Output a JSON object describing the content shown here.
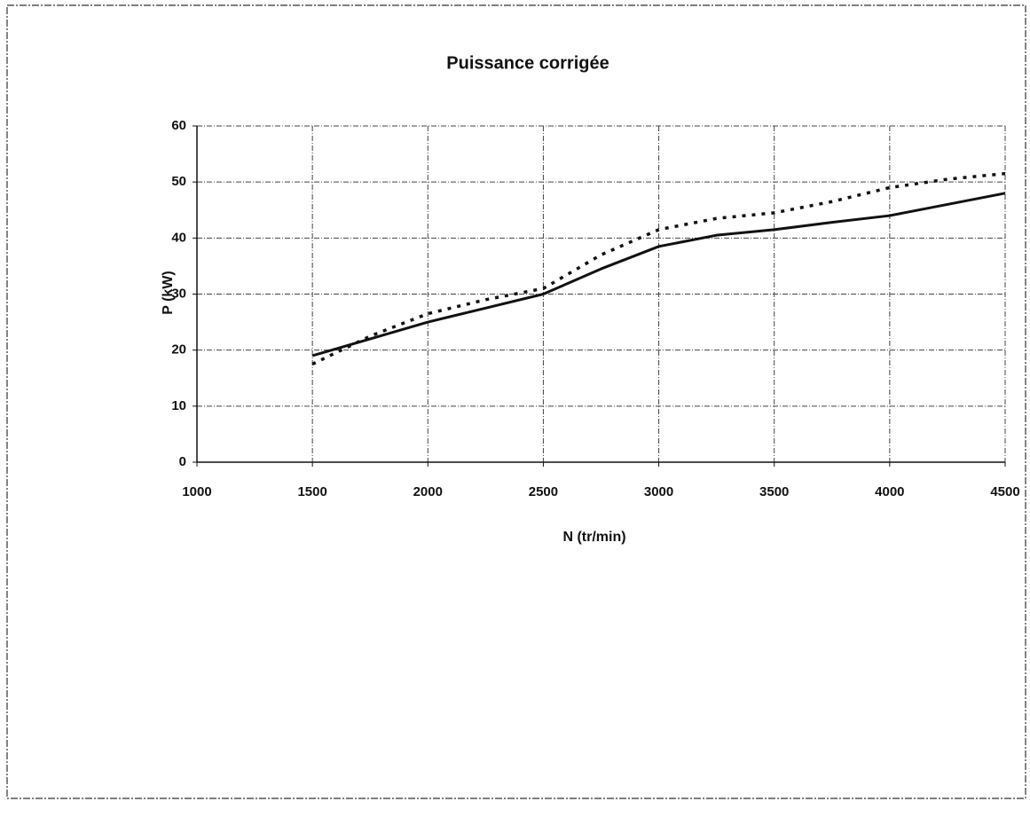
{
  "chart_data": {
    "type": "line",
    "title": "Puissance corrigée",
    "xlabel": "N (tr/min)",
    "ylabel": "P (kW)",
    "x": [
      1500,
      1750,
      2000,
      2250,
      2500,
      2750,
      3000,
      3250,
      3500,
      3750,
      4000,
      4250,
      4500
    ],
    "series": [
      {
        "color": "#111111",
        "dash": false,
        "values": [
          19,
          22,
          25,
          27.5,
          30,
          34.5,
          38.5,
          40.5,
          41.5,
          42.8,
          44,
          46,
          48
        ]
      },
      {
        "color": "#111111",
        "dash": true,
        "values": [
          17.5,
          22.5,
          26.5,
          29,
          31,
          37,
          41.5,
          43.5,
          44.5,
          46.5,
          49,
          50.5,
          51.5
        ]
      }
    ],
    "xlim": [
      1000,
      4500
    ],
    "xticks": [
      1000,
      1500,
      2000,
      2500,
      3000,
      3500,
      4000,
      4500
    ],
    "ylim": [
      0,
      60
    ],
    "yticks": [
      0,
      10,
      20,
      30,
      40,
      50,
      60
    ],
    "grid": true
  }
}
